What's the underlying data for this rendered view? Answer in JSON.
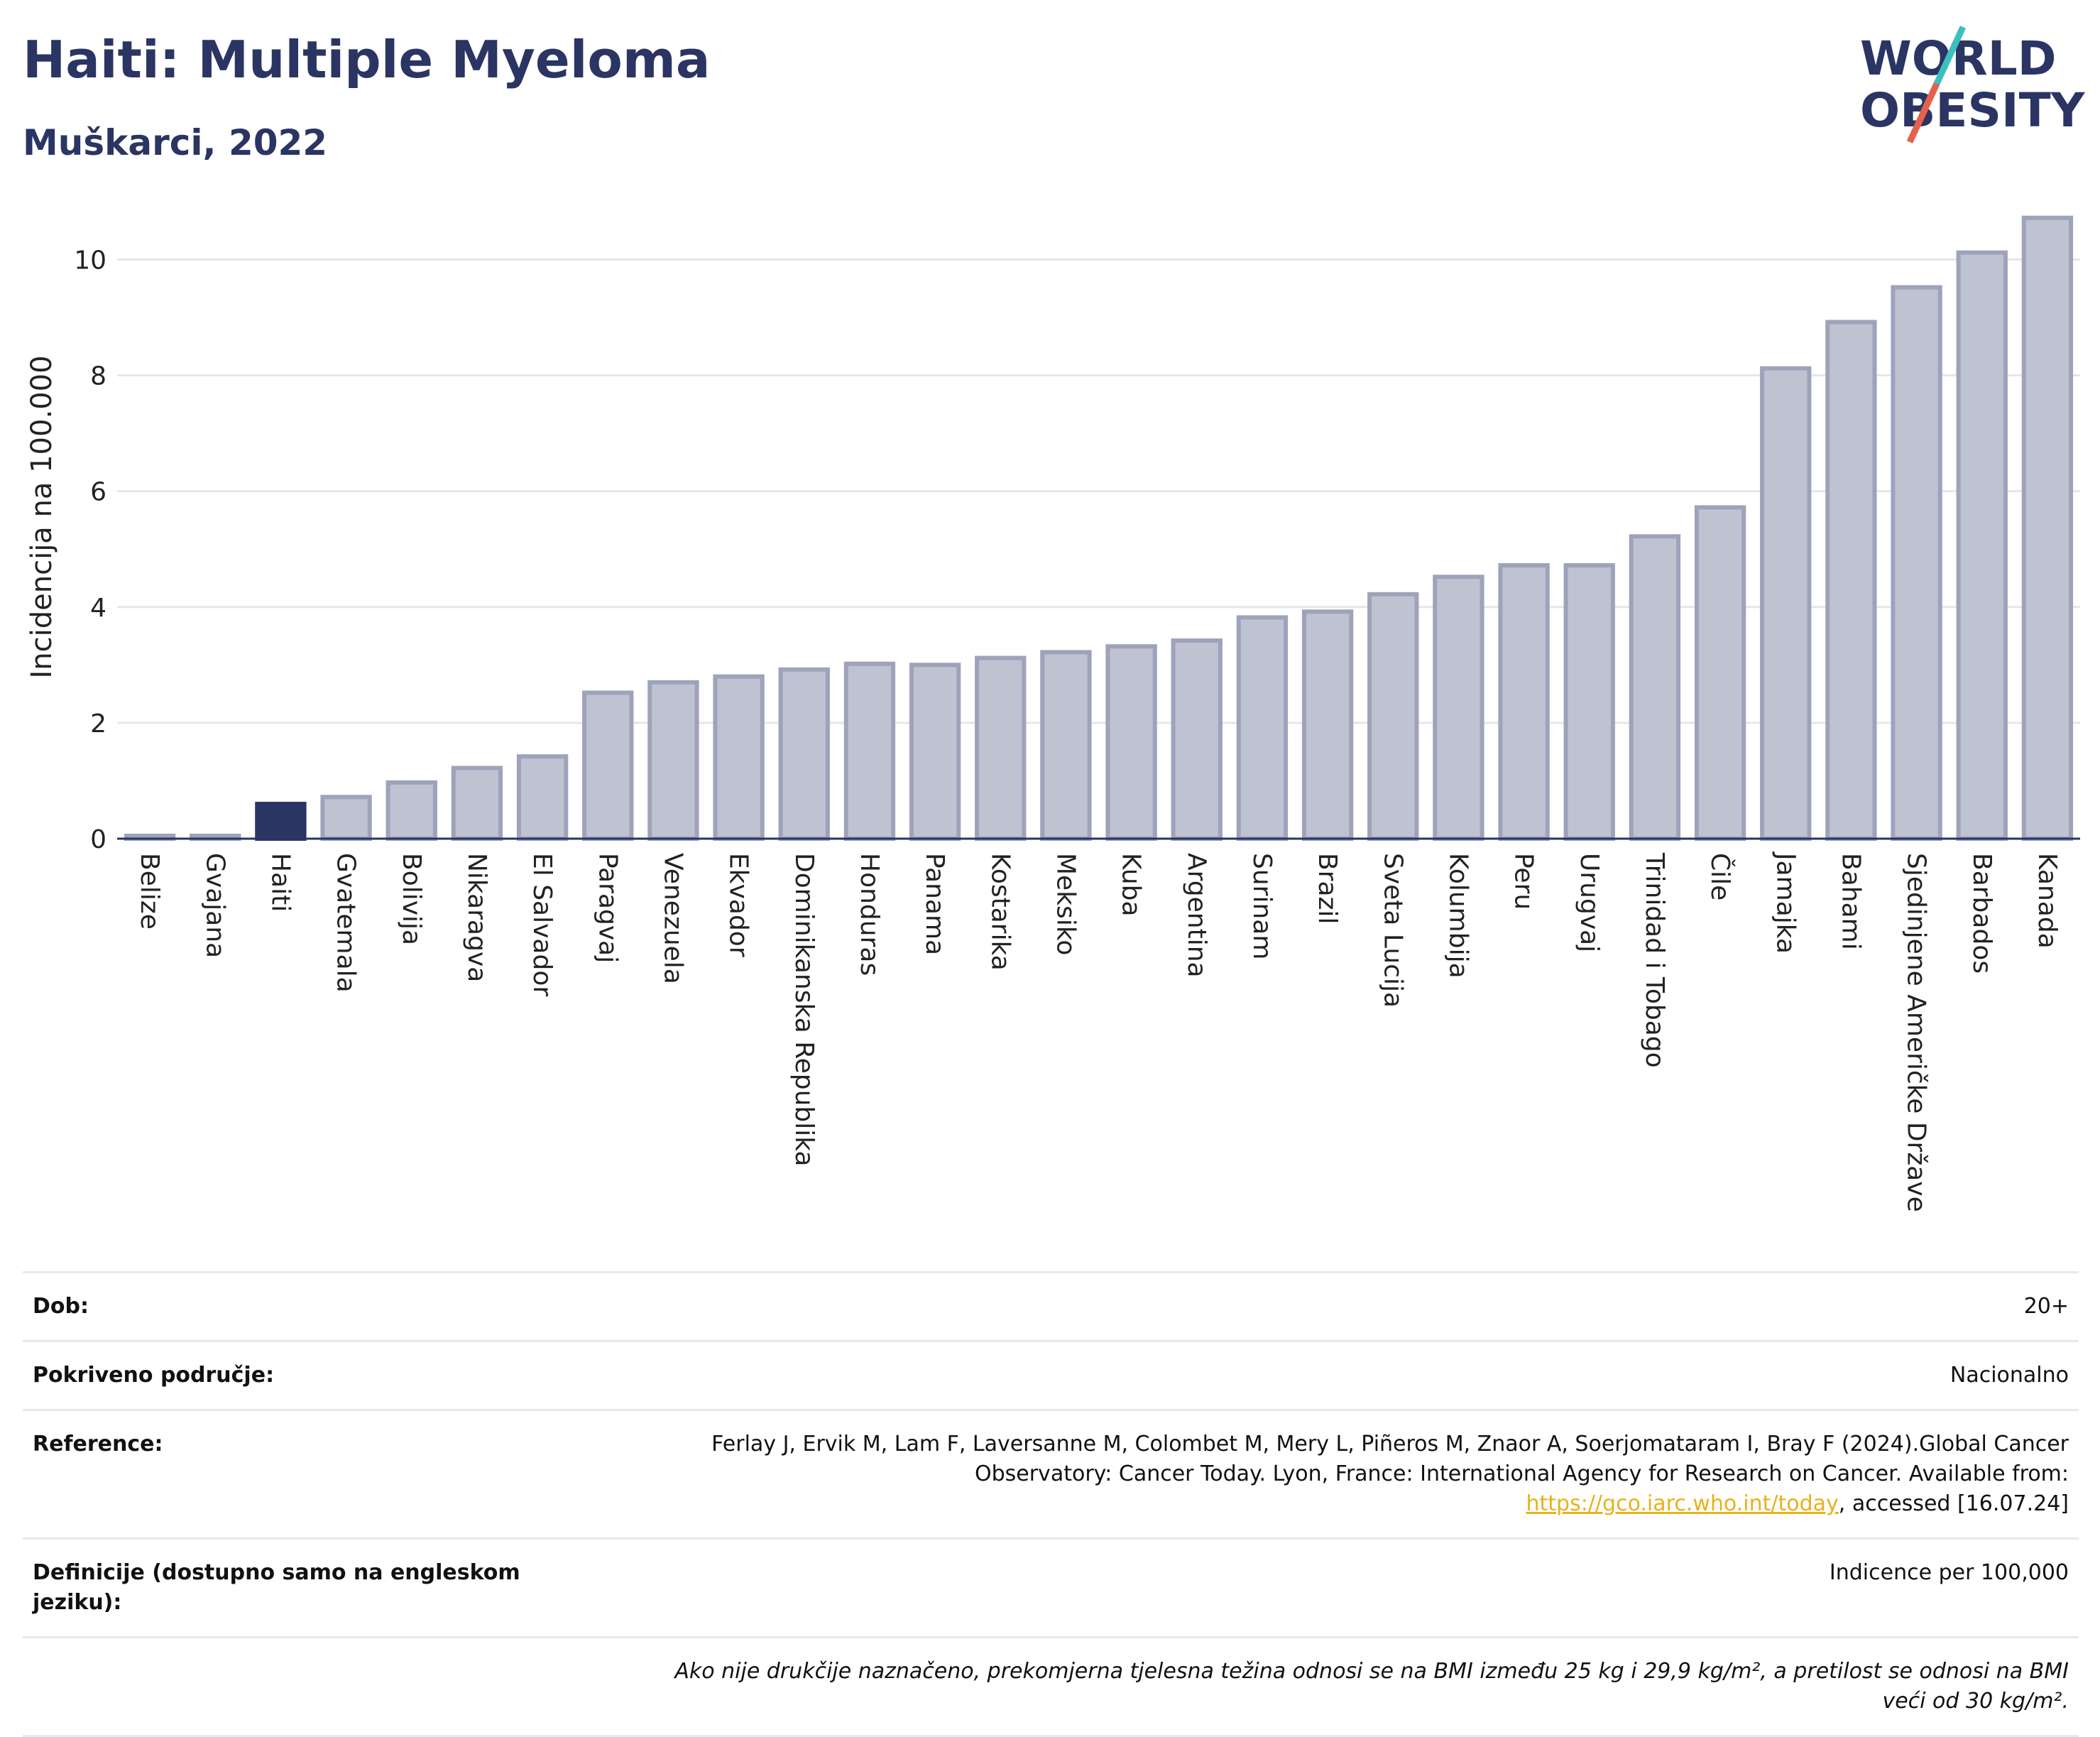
{
  "header": {
    "title": "Haiti: Multiple Myeloma",
    "subtitle": "Muškarci, 2022"
  },
  "logo": {
    "line1": "WORLD",
    "line2": "OBESITY"
  },
  "colors": {
    "highlight_bar": "#2b3563",
    "bar_fill": "#bfc2d0",
    "bar_stroke": "#9ea3bb",
    "grid": "#e6e6ea",
    "logo_teal": "#3bbfbf",
    "logo_red": "#e8604c"
  },
  "chart_data": {
    "type": "bar",
    "title": "Haiti: Multiple Myeloma",
    "subtitle": "Muškarci, 2022",
    "ylabel": "Incidencija na 100.000",
    "xlabel": "",
    "ylim": [
      0,
      10.9
    ],
    "yticks": [
      0,
      2,
      4,
      6,
      8,
      10
    ],
    "highlight": "Haiti",
    "grid": true,
    "categories": [
      "Belize",
      "Gvajana",
      "Haiti",
      "Gvatemala",
      "Bolivija",
      "Nikaragva",
      "El Salvador",
      "Paragvaj",
      "Venezuela",
      "Ekvador",
      "Dominikanska Republika",
      "Honduras",
      "Panama",
      "Kostarika",
      "Meksiko",
      "Kuba",
      "Argentina",
      "Surinam",
      "Brazil",
      "Sveta Lucija",
      "Kolumbija",
      "Peru",
      "Urugvaj",
      "Trinidad i Tobago",
      "Čile",
      "Jamajka",
      "Bahami",
      "Sjedinjene Američke Države",
      "Barbados",
      "Kanada"
    ],
    "values": [
      0.05,
      0.05,
      0.6,
      0.72,
      0.97,
      1.22,
      1.42,
      2.52,
      2.7,
      2.8,
      2.92,
      3.02,
      3.0,
      3.12,
      3.22,
      3.32,
      3.42,
      3.82,
      3.92,
      4.22,
      4.52,
      4.72,
      4.72,
      5.22,
      5.72,
      8.12,
      8.92,
      9.52,
      10.12,
      10.72
    ]
  },
  "meta": {
    "age_label": "Dob:",
    "age_value": "20+",
    "coverage_label": "Pokriveno područje:",
    "coverage_value": "Nacionalno",
    "reference_label": "Reference:",
    "reference_text": "Ferlay J, Ervik M, Lam F, Laversanne M, Colombet M, Mery L, Piñeros M, Znaor A, Soerjomataram I, Bray F (2024).Global Cancer Observatory: Cancer Today. Lyon, France: International Agency for Research on Cancer. Available from: ",
    "reference_link": "https://gco.iarc.who.int/today",
    "reference_suffix": ", accessed [16.07.24]",
    "definition_label": "Definicije (dostupno samo na engleskom jeziku):",
    "definition_value": "Indicence per 100,000",
    "note": "Ako nije drukčije naznačeno, prekomjerna tjelesna težina odnosi se na BMI između 25 kg i 29,9 kg/m², a pretilost se odnosi na BMI veći od 30 kg/m²."
  }
}
